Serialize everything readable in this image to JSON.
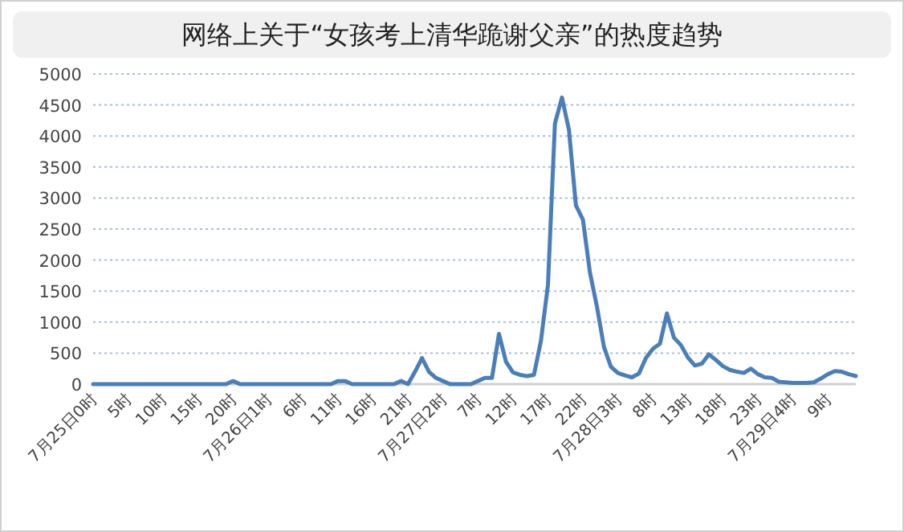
{
  "chart_data": {
    "type": "line",
    "title": "网络上关于“女孩考上清华跪谢父亲”的热度趋势",
    "categories": [
      "7月25日0时",
      null,
      null,
      null,
      null,
      "5时",
      null,
      null,
      null,
      null,
      "10时",
      null,
      null,
      null,
      null,
      "15时",
      null,
      null,
      null,
      null,
      "20时",
      null,
      null,
      null,
      null,
      "7月26日1时",
      null,
      null,
      null,
      null,
      "6时",
      null,
      null,
      null,
      null,
      "11时",
      null,
      null,
      null,
      null,
      "16时",
      null,
      null,
      null,
      null,
      "21时",
      null,
      null,
      null,
      null,
      "7月27日2时",
      null,
      null,
      null,
      null,
      "7时",
      null,
      null,
      null,
      null,
      "12时",
      null,
      null,
      null,
      null,
      "17时",
      null,
      null,
      null,
      null,
      "22时",
      null,
      null,
      null,
      null,
      "7月28日3时",
      null,
      null,
      null,
      null,
      "8时",
      null,
      null,
      null,
      null,
      "13时",
      null,
      null,
      null,
      null,
      "18时",
      null,
      null,
      null,
      null,
      "23时",
      null,
      null,
      null,
      null,
      "7月29日4时",
      null,
      null,
      null,
      null,
      "9时",
      null,
      null,
      null,
      null
    ],
    "series": [
      {
        "color": "#4a7ebb",
        "values": [
          0,
          0,
          0,
          0,
          0,
          0,
          0,
          0,
          0,
          0,
          0,
          0,
          0,
          0,
          0,
          0,
          0,
          0,
          0,
          0,
          50,
          0,
          0,
          0,
          0,
          0,
          0,
          0,
          0,
          0,
          0,
          0,
          0,
          0,
          0,
          50,
          50,
          0,
          0,
          0,
          0,
          0,
          0,
          0,
          50,
          0,
          200,
          420,
          200,
          100,
          50,
          0,
          0,
          0,
          0,
          50,
          100,
          100,
          810,
          360,
          190,
          150,
          130,
          150,
          700,
          1600,
          4200,
          4620,
          4100,
          2880,
          2650,
          1800,
          1250,
          600,
          280,
          180,
          140,
          110,
          170,
          420,
          570,
          650,
          1140,
          750,
          630,
          430,
          300,
          330,
          480,
          390,
          290,
          230,
          200,
          180,
          250,
          160,
          110,
          100,
          40,
          30,
          20,
          20,
          20,
          30,
          90,
          160,
          210,
          200,
          160,
          130
        ]
      }
    ],
    "ylim": [
      0,
      5000
    ],
    "yticks": [
      0,
      500,
      1000,
      1500,
      2000,
      2500,
      3000,
      3500,
      4000,
      4500,
      5000
    ],
    "grid": "y"
  }
}
